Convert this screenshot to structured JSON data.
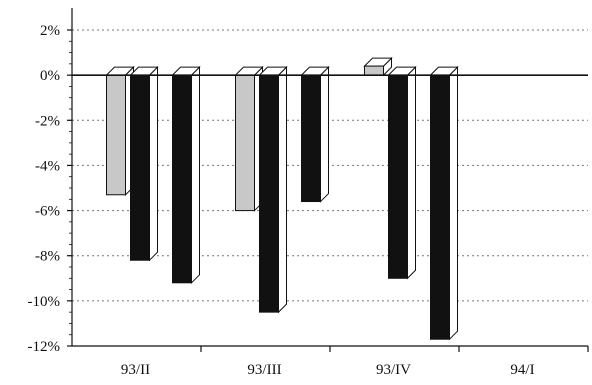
{
  "chart_data": {
    "type": "bar",
    "style": "3d-columns",
    "categories": [
      "93/II",
      "93/III",
      "93/IV",
      "94/I"
    ],
    "series": [
      {
        "color": "#c8c8c8",
        "values": [
          -5.3,
          -6.0,
          0.4,
          null
        ]
      },
      {
        "color": "#111111",
        "values": [
          -8.2,
          -10.5,
          -9.0,
          null
        ]
      },
      {
        "color": "#111111",
        "values": [
          -9.2,
          -5.6,
          -11.7,
          null
        ]
      }
    ],
    "ylim": [
      -12,
      2
    ],
    "yticks": [
      2,
      0,
      -2,
      -4,
      -6,
      -8,
      -10,
      -12
    ],
    "ytick_labels": [
      "2%",
      "0%",
      "-2%",
      "-4%",
      "-6%",
      "-8%",
      "-10%",
      "-12%"
    ],
    "grid": true,
    "title": "",
    "xlabel": "",
    "ylabel": ""
  }
}
